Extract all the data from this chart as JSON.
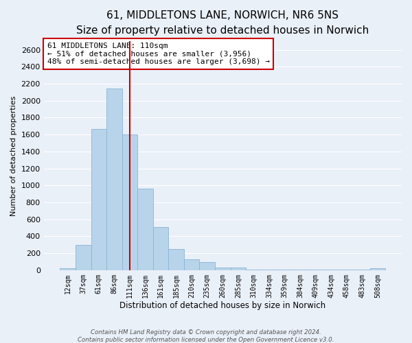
{
  "title": "61, MIDDLETONS LANE, NORWICH, NR6 5NS",
  "subtitle": "Size of property relative to detached houses in Norwich",
  "xlabel": "Distribution of detached houses by size in Norwich",
  "ylabel": "Number of detached properties",
  "bar_labels": [
    "12sqm",
    "37sqm",
    "61sqm",
    "86sqm",
    "111sqm",
    "136sqm",
    "161sqm",
    "185sqm",
    "210sqm",
    "235sqm",
    "260sqm",
    "285sqm",
    "310sqm",
    "334sqm",
    "359sqm",
    "384sqm",
    "409sqm",
    "434sqm",
    "458sqm",
    "483sqm",
    "508sqm"
  ],
  "bar_values": [
    20,
    295,
    1670,
    2140,
    1600,
    960,
    505,
    250,
    125,
    95,
    30,
    30,
    5,
    5,
    5,
    5,
    5,
    5,
    5,
    5,
    20
  ],
  "bar_color": "#b8d4ea",
  "bar_edge_color": "#8ab4d4",
  "vline_x_idx": 4,
  "vline_color": "#cc0000",
  "ylim": [
    0,
    2700
  ],
  "yticks": [
    0,
    200,
    400,
    600,
    800,
    1000,
    1200,
    1400,
    1600,
    1800,
    2000,
    2200,
    2400,
    2600
  ],
  "annotation_line1": "61 MIDDLETONS LANE: 110sqm",
  "annotation_line2": "← 51% of detached houses are smaller (3,956)",
  "annotation_line3": "48% of semi-detached houses are larger (3,698) →",
  "annotation_box_color": "#ffffff",
  "annotation_box_edge": "#cc0000",
  "footer_line1": "Contains HM Land Registry data © Crown copyright and database right 2024.",
  "footer_line2": "Contains public sector information licensed under the Open Government Licence v3.0.",
  "background_color": "#eaf0f8",
  "plot_bg_color": "#eaf0f8",
  "grid_color": "#ffffff",
  "title_fontsize": 11,
  "subtitle_fontsize": 9
}
